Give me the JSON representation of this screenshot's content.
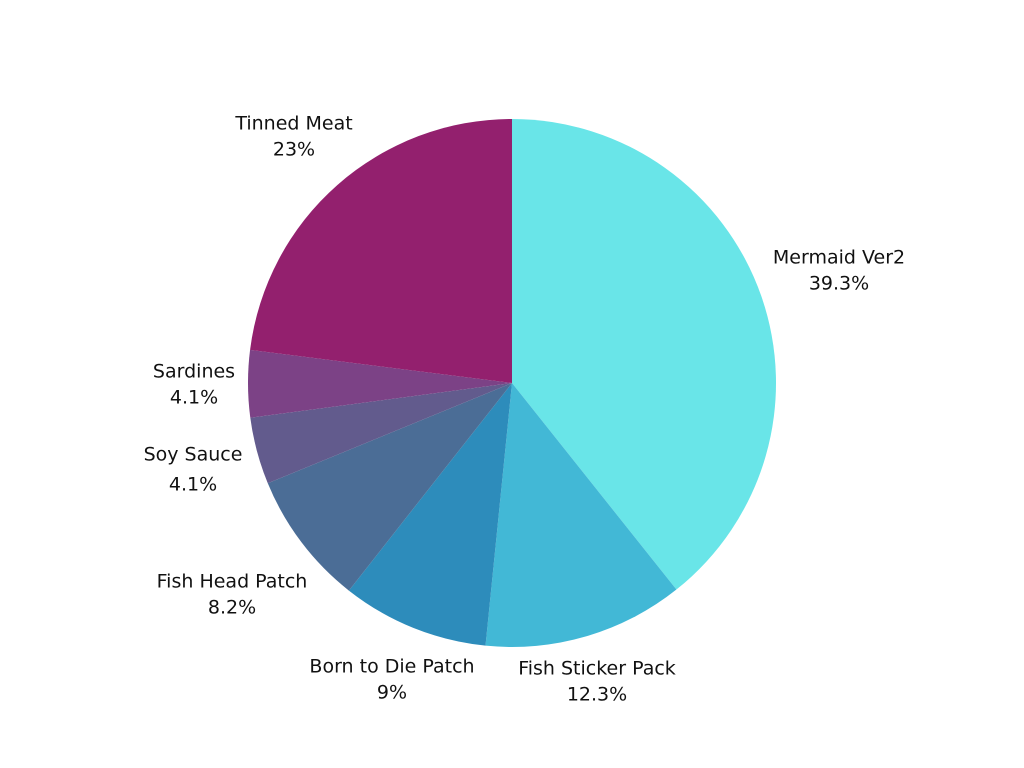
{
  "chart_data": {
    "type": "pie",
    "title": "",
    "slices": [
      {
        "label": "Mermaid Ver2",
        "pct_label": "39.3%",
        "value": 39.3,
        "color": "#69E5E8"
      },
      {
        "label": "Fish Sticker Pack",
        "pct_label": "12.3%",
        "value": 12.3,
        "color": "#42B8D6"
      },
      {
        "label": "Born to Die Patch",
        "pct_label": "9%",
        "value": 9.0,
        "color": "#2D8CBB"
      },
      {
        "label": "Fish Head Patch",
        "pct_label": "8.2%",
        "value": 8.2,
        "color": "#4B6D96"
      },
      {
        "label": "Soy Sauce",
        "pct_label": "4.1%",
        "value": 4.1,
        "color": "#625B8D"
      },
      {
        "label": "Sardines",
        "pct_label": "4.1%",
        "value": 4.1,
        "color": "#7C4286"
      },
      {
        "label": "Tinned Meat",
        "pct_label": "23%",
        "value": 23.0,
        "color": "#93206E"
      }
    ],
    "start": "12 o'clock",
    "direction": "clockwise",
    "legend": "none"
  }
}
